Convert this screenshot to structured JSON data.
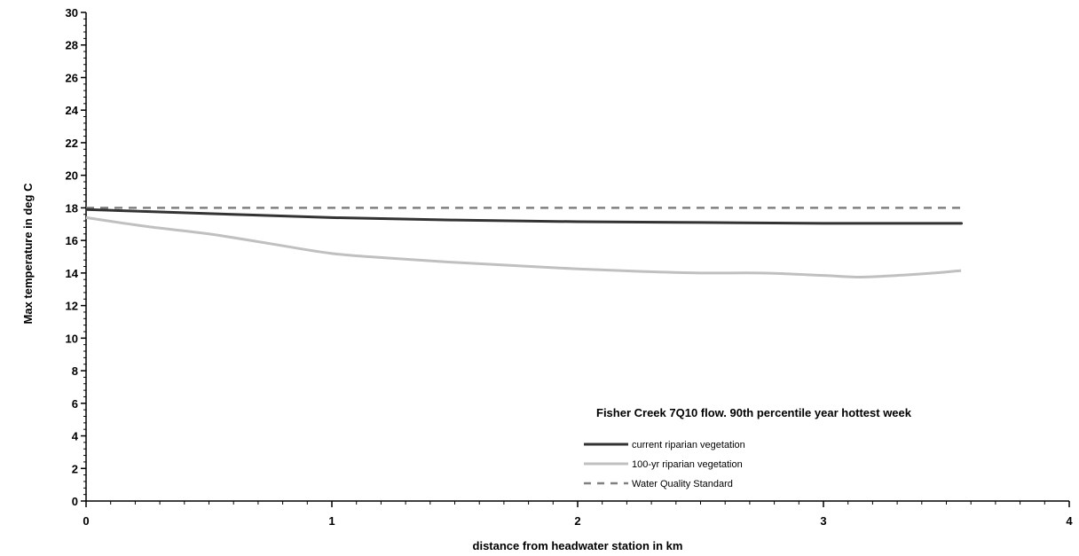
{
  "chart_data": {
    "type": "line",
    "title": "",
    "xlabel": "distance from headwater station in km",
    "ylabel": "Max temperature in deg C",
    "xlim": [
      0,
      4
    ],
    "ylim": [
      0,
      30
    ],
    "x_ticks": [
      0,
      1,
      2,
      3,
      4
    ],
    "y_ticks": [
      0,
      2,
      4,
      6,
      8,
      10,
      12,
      14,
      16,
      18,
      20,
      22,
      24,
      26,
      28,
      30
    ],
    "grid": false,
    "legend": {
      "title": "Fisher Creek 7Q10 flow. 90th percentile year hottest week",
      "position": "bottom-right"
    },
    "series": [
      {
        "name": "current riparian vegetation",
        "color": "#333333",
        "style": "solid",
        "x": [
          0,
          0.5,
          1.0,
          1.5,
          2.0,
          2.5,
          3.0,
          3.5,
          3.56
        ],
        "y": [
          17.9,
          17.65,
          17.4,
          17.25,
          17.15,
          17.1,
          17.05,
          17.05,
          17.05
        ]
      },
      {
        "name": "100-yr riparian vegetation",
        "color": "#c0c0c0",
        "style": "solid",
        "x": [
          0,
          0.25,
          0.5,
          0.75,
          1.0,
          1.25,
          1.5,
          1.75,
          2.0,
          2.25,
          2.5,
          2.75,
          3.0,
          3.15,
          3.3,
          3.45,
          3.56
        ],
        "y": [
          17.4,
          16.85,
          16.4,
          15.8,
          15.2,
          14.9,
          14.65,
          14.45,
          14.25,
          14.1,
          14.0,
          14.0,
          13.85,
          13.75,
          13.85,
          14.0,
          14.15
        ]
      },
      {
        "name": "Water Quality Standard",
        "color": "#808080",
        "style": "dashed",
        "x": [
          0,
          3.56
        ],
        "y": [
          18,
          18
        ]
      }
    ]
  }
}
